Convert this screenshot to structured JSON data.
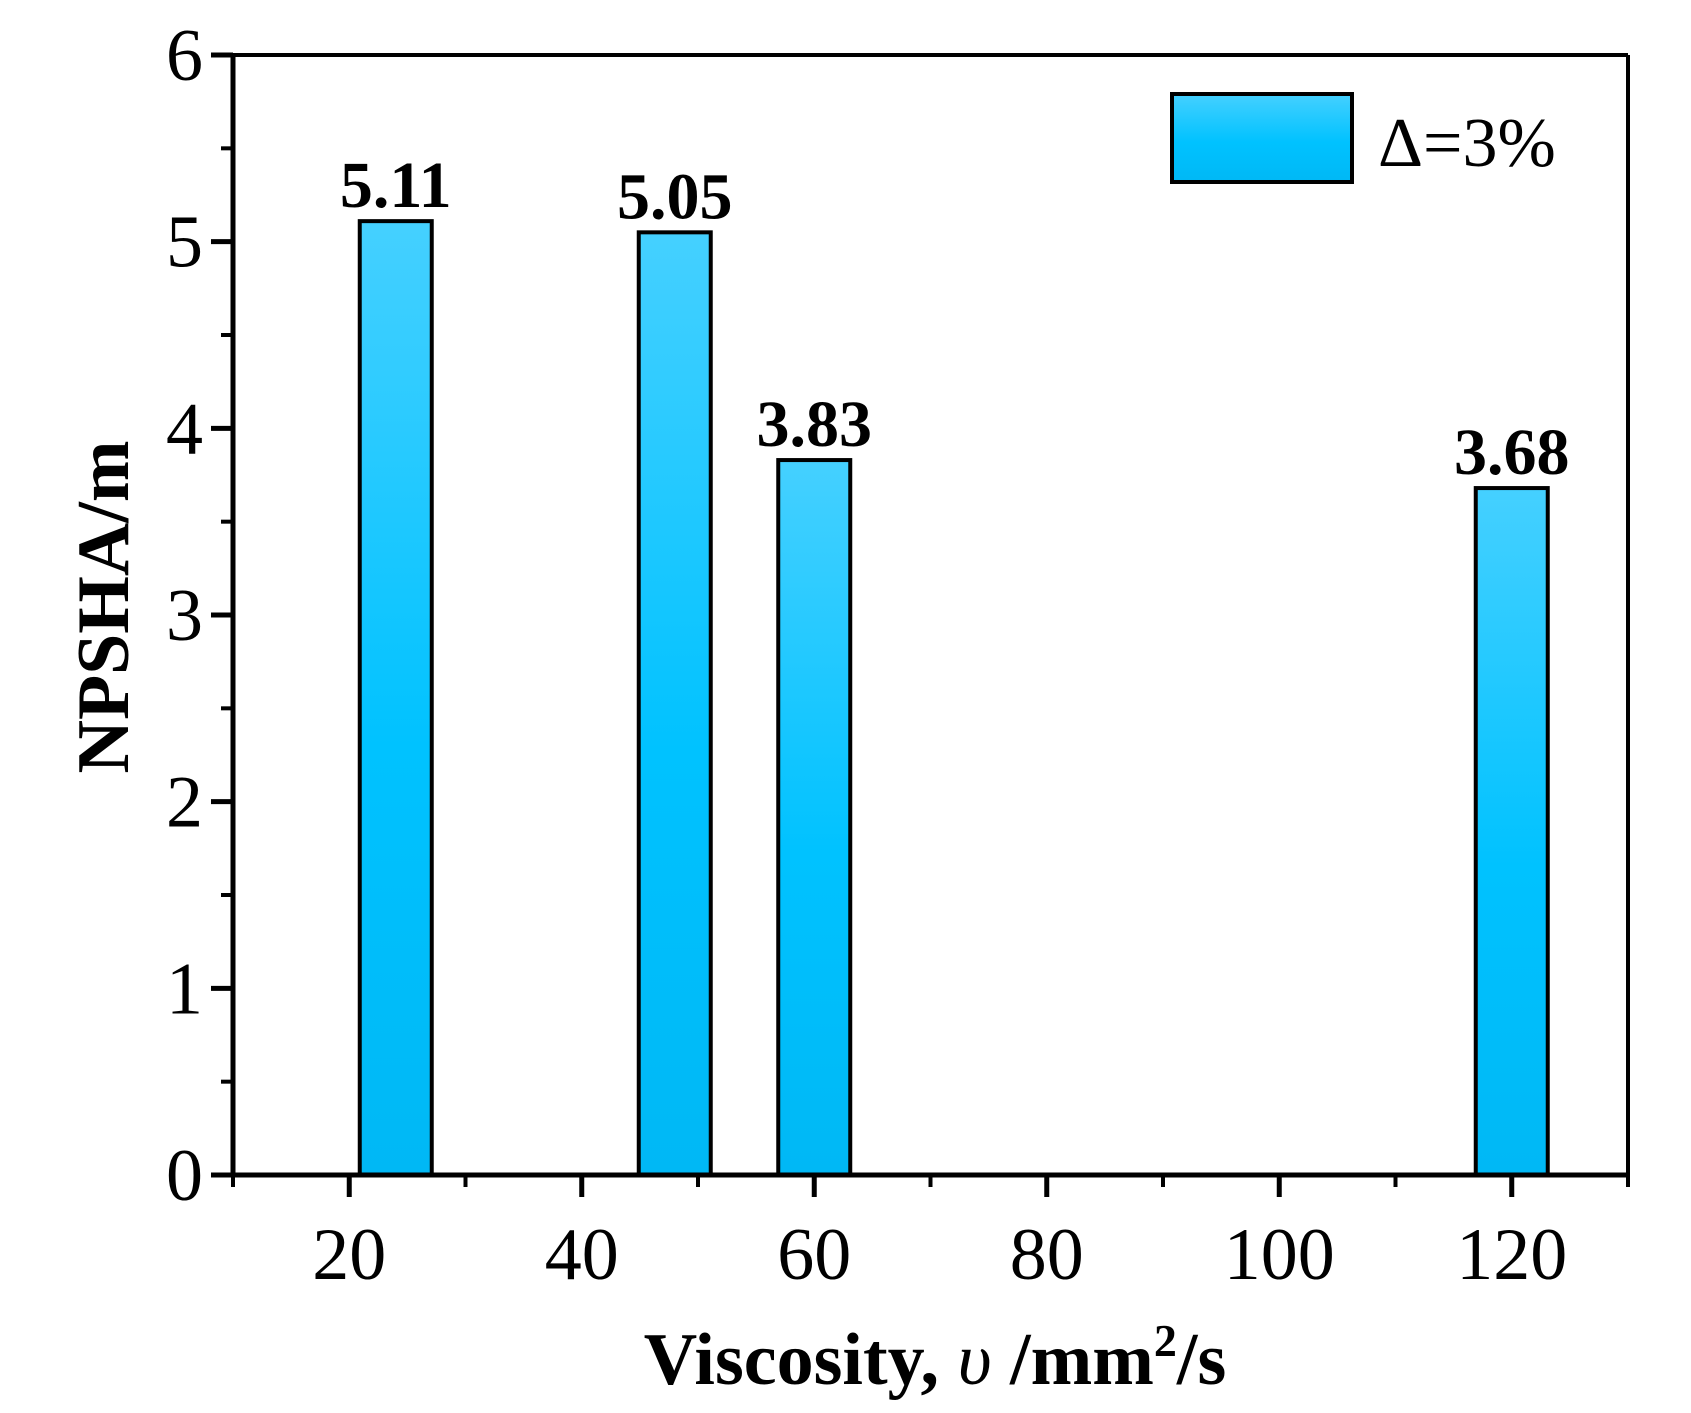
{
  "chart_data": {
    "type": "bar",
    "x": [
      24,
      48,
      60,
      120
    ],
    "values": [
      5.11,
      5.05,
      3.83,
      3.68
    ],
    "data_labels": [
      "5.11",
      "5.05",
      "3.83",
      "3.68"
    ],
    "series": [
      {
        "name": "Δ=3%",
        "values": [
          5.11,
          5.05,
          3.83,
          3.68
        ]
      }
    ],
    "xlabel_parts": {
      "main": "Viscosity, ",
      "symbol": "υ",
      "unit": " /mm",
      "sup": "2",
      "tail": "/s"
    },
    "ylabel": "NPSHA/m",
    "xlim": [
      10,
      130
    ],
    "ylim": [
      0,
      6
    ],
    "x_ticks": [
      20,
      40,
      60,
      80,
      100,
      120
    ],
    "x_tick_labels": [
      "20",
      "40",
      "60",
      "80",
      "100",
      "120"
    ],
    "y_ticks": [
      0,
      1,
      2,
      3,
      4,
      5,
      6
    ],
    "y_tick_labels": [
      "0",
      "1",
      "2",
      "3",
      "4",
      "5",
      "6"
    ],
    "legend": {
      "label": "Δ=3%",
      "position": "top-right"
    },
    "bar_color_top": "#45D0FF",
    "bar_color_mid": "#00C2FF",
    "bar_color_bottom": "#00B8F5",
    "grid": false
  }
}
